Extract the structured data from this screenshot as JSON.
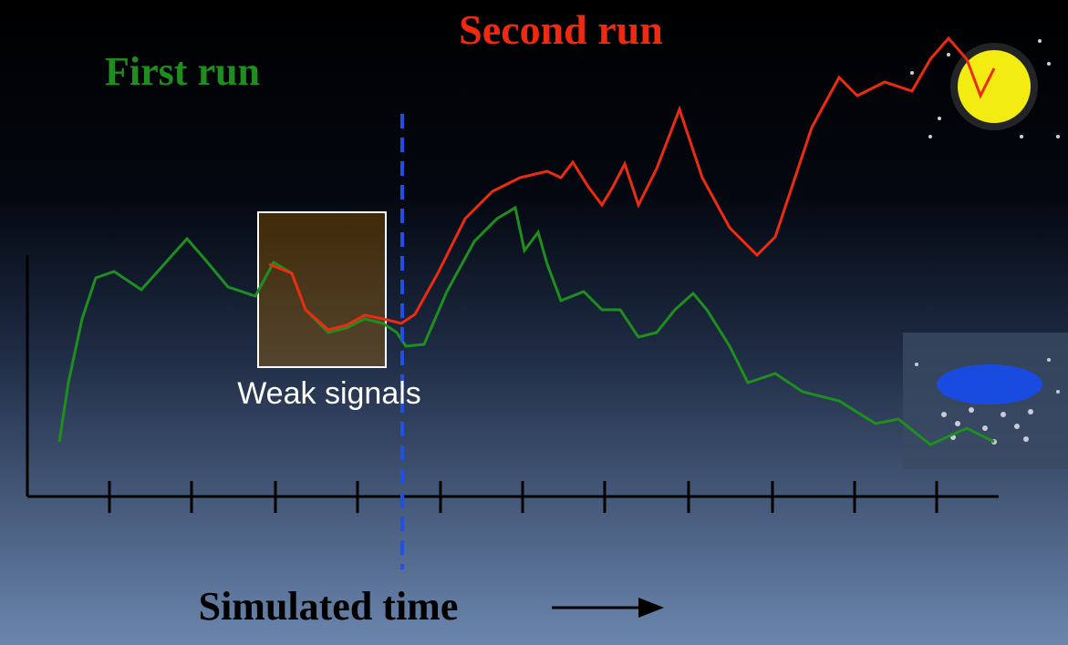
{
  "labels": {
    "second_run": "Second run",
    "first_run": "First run",
    "weak_signals": "Weak signals",
    "x_axis": "Simulated time"
  }
}
